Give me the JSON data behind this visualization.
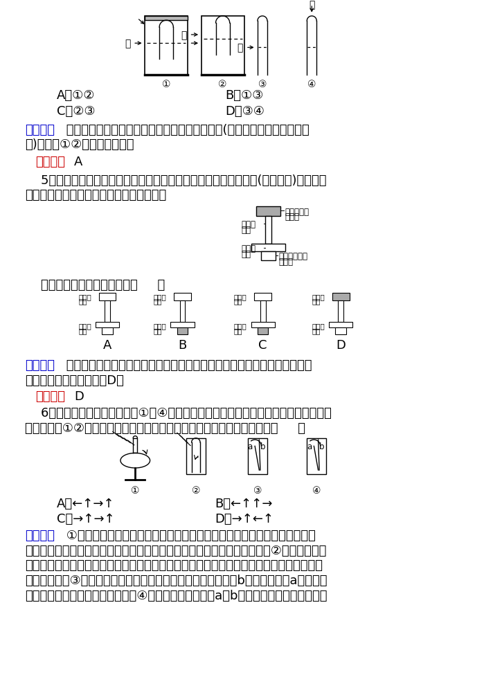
{
  "bg_color": "#ffffff",
  "text_color": "#000000",
  "blue_color": "#0000cc",
  "red_color": "#cc0000",
  "body_fontsize": 13,
  "small_fontsize": 10,
  "tiny_fontsize": 8.5,
  "lm": 46
}
